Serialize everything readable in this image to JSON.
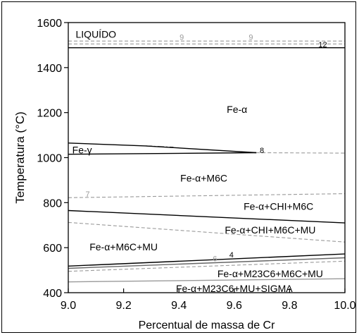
{
  "chart_data": {
    "type": "line",
    "title": "",
    "xlabel": "Percentual de massa de Cr",
    "ylabel": "Temperatura (°C)",
    "xlim": [
      9.0,
      10.0
    ],
    "ylim": [
      400,
      1600
    ],
    "xticks": [
      "9.0",
      "9.2",
      "9.4",
      "9.6",
      "9.8",
      "10.0"
    ],
    "yticks": [
      "400",
      "600",
      "800",
      "1000",
      "1200",
      "1400",
      "1600"
    ],
    "grid": false,
    "legend": "none",
    "series": [
      {
        "x": [
          9.0,
          10.0
        ],
        "y": [
          1518,
          1518
        ],
        "style": "dashed",
        "color": "#9a9a9a"
      },
      {
        "x": [
          9.0,
          10.0
        ],
        "y": [
          1505,
          1505
        ],
        "style": "dashed",
        "color": "#9a9a9a"
      },
      {
        "x": [
          9.0,
          10.0
        ],
        "y": [
          1488,
          1488
        ],
        "style": "solid",
        "color": "#000000"
      },
      {
        "x": [
          9.0,
          9.28,
          9.68
        ],
        "y": [
          1065,
          1052,
          1022
        ],
        "style": "solid",
        "color": "#000000"
      },
      {
        "x": [
          9.28,
          9.38
        ],
        "y": [
          1052,
          1046
        ],
        "style": "dashdot",
        "color": "#000000"
      },
      {
        "x": [
          9.0,
          9.68
        ],
        "y": [
          1015,
          1022
        ],
        "style": "solid",
        "color": "#000000"
      },
      {
        "x": [
          9.68,
          10.0
        ],
        "y": [
          1022,
          1020
        ],
        "style": "dashed",
        "color": "#9a9a9a"
      },
      {
        "x": [
          9.0,
          10.0
        ],
        "y": [
          822,
          840
        ],
        "style": "dashed",
        "color": "#9a9a9a"
      },
      {
        "x": [
          9.0,
          10.0
        ],
        "y": [
          765,
          710
        ],
        "style": "solid",
        "color": "#000000"
      },
      {
        "x": [
          9.0,
          10.0
        ],
        "y": [
          712,
          625
        ],
        "style": "dashed",
        "color": "#9a9a9a"
      },
      {
        "x": [
          9.0,
          10.0
        ],
        "y": [
          518,
          572
        ],
        "style": "solid",
        "color": "#000000"
      },
      {
        "x": [
          9.0,
          10.0
        ],
        "y": [
          508,
          555
        ],
        "style": "solid",
        "color": "#666666"
      },
      {
        "x": [
          9.0,
          10.0
        ],
        "y": [
          495,
          540
        ],
        "style": "dashed",
        "color": "#9a9a9a"
      },
      {
        "x": [
          9.0,
          10.0
        ],
        "y": [
          448,
          462
        ],
        "style": "solid",
        "color": "#9a9a9a"
      }
    ],
    "region_labels": [
      {
        "text": "LIQUÍDO",
        "x": 9.1,
        "y": 1545
      },
      {
        "text": "Fe-α",
        "x": 9.61,
        "y": 1210
      },
      {
        "text": "Fe-γ",
        "x": 9.05,
        "y": 1030
      },
      {
        "text": "Fe-α+M6C",
        "x": 9.49,
        "y": 905
      },
      {
        "text": "Fe-α+CHI+M6C",
        "x": 9.76,
        "y": 780
      },
      {
        "text": "Fe-α+CHI+M6C+MU",
        "x": 9.73,
        "y": 675
      },
      {
        "text": "Fe-α+M6C+MU",
        "x": 9.2,
        "y": 600
      },
      {
        "text": "Fe-α+M23C6+M6C+MU",
        "x": 9.73,
        "y": 480
      },
      {
        "text": "Fe-α+M23C6+MU+SIGMA",
        "x": 9.6,
        "y": 415
      }
    ],
    "line_numbers": [
      {
        "text": "9",
        "x": 9.41,
        "y": 1533,
        "color": "#9a9a9a"
      },
      {
        "text": "9",
        "x": 9.66,
        "y": 1533,
        "color": "#9a9a9a"
      },
      {
        "text": "12",
        "x": 9.92,
        "y": 1500,
        "color": "#000000"
      },
      {
        "text": "8",
        "x": 9.7,
        "y": 1030,
        "color": "#000000"
      },
      {
        "text": "7",
        "x": 9.07,
        "y": 835,
        "color": "#9a9a9a"
      },
      {
        "text": "4",
        "x": 9.59,
        "y": 566,
        "color": "#000000"
      },
      {
        "text": "6",
        "x": 9.53,
        "y": 548,
        "color": "#9a9a9a"
      }
    ]
  }
}
